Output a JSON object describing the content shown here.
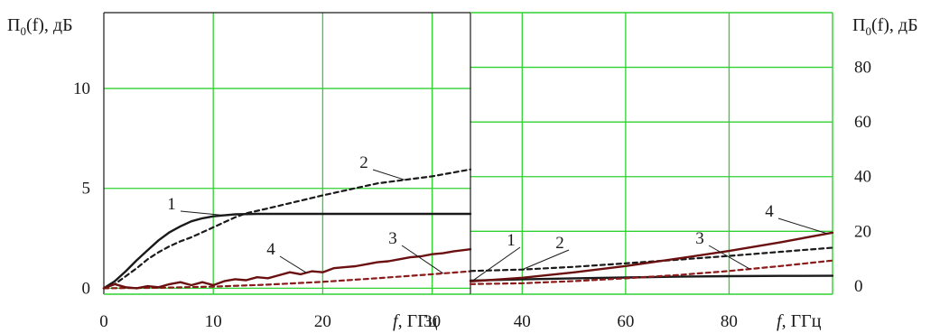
{
  "chart_data": [
    {
      "type": "line",
      "panel": "left",
      "ylabel": "П0(f), дБ",
      "ylabel_main": "П",
      "ylabel_sub": "0",
      "ylabel_rest": "(f), дБ",
      "xlabel": "f, ГГц",
      "xlabel_var": "f",
      "xlabel_unit": ", ГГц",
      "xlim": [
        0,
        33.5
      ],
      "ylim": [
        -0.3,
        13.8
      ],
      "xticks": [
        0,
        10,
        20,
        30
      ],
      "xtick_labels": [
        "0",
        "10",
        "20",
        "30"
      ],
      "yticks": [
        0,
        5,
        10
      ],
      "ytick_labels": [
        "0",
        "5",
        "10"
      ],
      "grid": true,
      "series": [
        {
          "name": "1",
          "style": "solid",
          "color": "#1a1a1a",
          "x": [
            0,
            1,
            2,
            3,
            4,
            5,
            6,
            7,
            8,
            9,
            10,
            11,
            12,
            14,
            16,
            20,
            25,
            30,
            33.5
          ],
          "y": [
            0,
            0.35,
            0.85,
            1.4,
            1.9,
            2.4,
            2.8,
            3.1,
            3.35,
            3.5,
            3.6,
            3.65,
            3.7,
            3.72,
            3.72,
            3.72,
            3.72,
            3.72,
            3.72
          ]
        },
        {
          "name": "2",
          "style": "dashed",
          "color": "#1a1a1a",
          "x": [
            0,
            1,
            2,
            3,
            4,
            5,
            6,
            7,
            8,
            9,
            10,
            11,
            12,
            13,
            15,
            20,
            25,
            30,
            33.5
          ],
          "y": [
            0,
            0.2,
            0.6,
            1.0,
            1.45,
            1.8,
            2.1,
            2.35,
            2.55,
            2.8,
            3.05,
            3.3,
            3.55,
            3.75,
            4.0,
            4.65,
            5.25,
            5.6,
            5.95
          ]
        },
        {
          "name": "3",
          "style": "dashed",
          "color": "#8b1a1a",
          "x": [
            0,
            5,
            10,
            15,
            20,
            25,
            30,
            33.5
          ],
          "y": [
            0,
            0.02,
            0.08,
            0.18,
            0.32,
            0.5,
            0.7,
            0.85
          ]
        },
        {
          "name": "4",
          "style": "solid",
          "color": "#6b1010",
          "x": [
            0,
            1,
            2,
            3,
            4,
            5,
            6,
            7,
            8,
            9,
            10,
            11,
            12,
            13,
            14,
            15,
            16,
            17,
            18,
            19,
            20,
            21,
            22,
            23,
            24,
            25,
            26,
            27,
            28,
            29,
            30,
            31,
            32,
            33.5
          ],
          "y": [
            0,
            0.2,
            0.05,
            0.0,
            0.1,
            0.05,
            0.2,
            0.3,
            0.15,
            0.3,
            0.15,
            0.35,
            0.45,
            0.4,
            0.55,
            0.5,
            0.65,
            0.8,
            0.7,
            0.85,
            0.8,
            1.0,
            1.05,
            1.1,
            1.2,
            1.3,
            1.35,
            1.45,
            1.55,
            1.6,
            1.7,
            1.75,
            1.85,
            1.95
          ]
        }
      ],
      "annotations": [
        {
          "label": "1",
          "series": "1"
        },
        {
          "label": "2",
          "series": "2"
        },
        {
          "label": "3",
          "series": "3"
        },
        {
          "label": "4",
          "series": "4"
        }
      ]
    },
    {
      "type": "line",
      "panel": "right",
      "ylabel": "П0(f), дБ",
      "ylabel_main": "П",
      "ylabel_sub": "0",
      "ylabel_rest": "(f), дБ",
      "xlabel": "f, ГГц",
      "xlabel_var": "f",
      "xlabel_unit": ", ГГц",
      "xlim": [
        30,
        100
      ],
      "ylim": [
        -3,
        100
      ],
      "xticks": [
        40,
        60,
        80
      ],
      "xtick_labels": [
        "40",
        "60",
        "80"
      ],
      "yticks": [
        0,
        20,
        40,
        60,
        80
      ],
      "ytick_labels": [
        "0",
        "20",
        "40",
        "60",
        "80"
      ],
      "grid": true,
      "series": [
        {
          "name": "1",
          "style": "solid",
          "color": "#1a1a1a",
          "x": [
            30,
            40,
            50,
            60,
            70,
            80,
            90,
            100
          ],
          "y": [
            2.0,
            2.4,
            2.8,
            3.1,
            3.4,
            3.6,
            3.7,
            3.75
          ]
        },
        {
          "name": "2",
          "style": "dashed",
          "color": "#1a1a1a",
          "x": [
            30,
            40,
            50,
            60,
            70,
            80,
            90,
            100
          ],
          "y": [
            5.5,
            6.0,
            7.0,
            8.3,
            9.6,
            11.0,
            12.5,
            14.0
          ]
        },
        {
          "name": "3",
          "style": "dashed",
          "color": "#8b1a1a",
          "x": [
            30,
            40,
            50,
            60,
            70,
            80,
            90,
            100
          ],
          "y": [
            0.7,
            1.0,
            1.8,
            2.8,
            4.0,
            5.5,
            7.3,
            9.3
          ]
        },
        {
          "name": "4",
          "style": "solid",
          "color": "#6b1010",
          "x": [
            30,
            40,
            50,
            60,
            70,
            80,
            90,
            100
          ],
          "y": [
            1.7,
            3.0,
            5.0,
            7.3,
            10.0,
            12.8,
            16.0,
            19.5
          ]
        }
      ],
      "annotations": [
        {
          "label": "1",
          "series": "1"
        },
        {
          "label": "2",
          "series": "2"
        },
        {
          "label": "3",
          "series": "3"
        },
        {
          "label": "4",
          "series": "4"
        }
      ]
    }
  ],
  "colors": {
    "grid": "#2fd12f",
    "axis_frame": "#1a1a1a",
    "right_border": "#2fd12f",
    "text": "#1a1a1a"
  }
}
